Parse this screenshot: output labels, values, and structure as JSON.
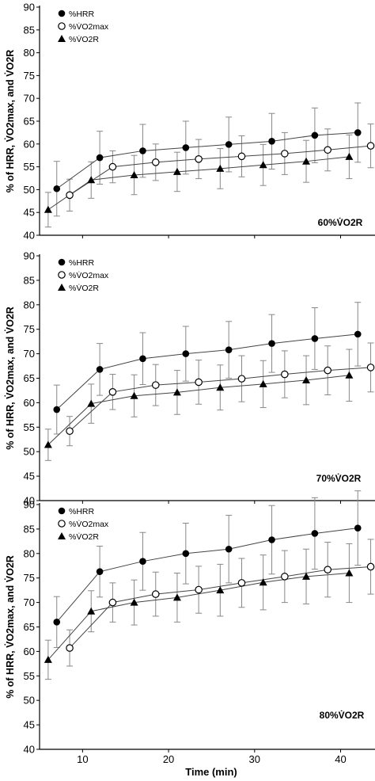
{
  "figure": {
    "x_axis_label": "Time (min)",
    "x_ticks": [
      "10",
      "20",
      "30",
      "40"
    ],
    "y_axis_label": "% of HRR, V̇O2max, and V̇O2R"
  },
  "legend": [
    {
      "label": "%HRR",
      "marker": "filled-circle"
    },
    {
      "label": "%V̇O2max",
      "marker": "open-circle"
    },
    {
      "label": "%V̇O2R",
      "marker": "filled-triangle"
    }
  ],
  "colors": {
    "ink": "#000000",
    "line": "#444444",
    "error_bar": "#888888",
    "background": "#ffffff"
  },
  "chart_data": [
    {
      "type": "line",
      "panel_label": "60%V̇O2R",
      "xlabel": "",
      "ylabel": "% of HRR, V̇O2max, and V̇O2R",
      "xlim": [
        5,
        44
      ],
      "ylim": [
        40,
        90
      ],
      "y_ticks": [
        40,
        45,
        50,
        55,
        60,
        65,
        70,
        75,
        80,
        85,
        90
      ],
      "grid": false,
      "legend_position": "top-left",
      "series": [
        {
          "name": "%HRR",
          "marker": "filled-circle",
          "x": [
            7,
            12,
            17,
            22,
            27,
            32,
            37,
            42
          ],
          "y": [
            50.2,
            57,
            58.5,
            59.2,
            59.9,
            60.6,
            61.9,
            62.5
          ],
          "err": [
            6,
            5.8,
            5.8,
            5.8,
            6,
            6.1,
            6,
            6.5
          ]
        },
        {
          "name": "%V̇O2max",
          "marker": "open-circle",
          "x": [
            8.5,
            13.5,
            18.5,
            23.5,
            28.5,
            33.5,
            38.5,
            43.5
          ],
          "y": [
            48.8,
            55,
            56,
            56.7,
            57.3,
            57.9,
            58.7,
            59.6
          ],
          "err": [
            3.5,
            3.5,
            4,
            4.3,
            4.5,
            4.6,
            4.6,
            4.8
          ]
        },
        {
          "name": "%V̇O2R",
          "marker": "filled-triangle",
          "x": [
            6,
            11,
            16,
            21,
            26,
            31,
            36,
            41
          ],
          "y": [
            45.6,
            52.1,
            53.2,
            53.9,
            54.6,
            55.4,
            56.2,
            57.2
          ],
          "err": [
            3.8,
            4,
            4.3,
            4.3,
            4.4,
            4.5,
            4.6,
            4.8
          ]
        }
      ]
    },
    {
      "type": "line",
      "panel_label": "70%V̇O2R",
      "xlabel": "",
      "ylabel": "% of HRR, V̇O2max, and V̇O2R",
      "xlim": [
        5,
        44
      ],
      "ylim": [
        40,
        90
      ],
      "y_ticks": [
        40,
        45,
        50,
        55,
        60,
        65,
        70,
        75,
        80,
        85,
        90
      ],
      "grid": false,
      "legend_position": "top-left",
      "series": [
        {
          "name": "%HRR",
          "marker": "filled-circle",
          "x": [
            7,
            12,
            17,
            22,
            27,
            32,
            37,
            42
          ],
          "y": [
            58.6,
            66.8,
            69,
            70,
            70.8,
            72.1,
            73.1,
            74
          ],
          "err": [
            5,
            5.3,
            5.3,
            5.6,
            5.8,
            5.9,
            6.3,
            6.5
          ]
        },
        {
          "name": "%V̇O2max",
          "marker": "open-circle",
          "x": [
            8.5,
            13.5,
            18.5,
            23.5,
            28.5,
            33.5,
            38.5,
            43.5
          ],
          "y": [
            54.2,
            62.2,
            63.6,
            64.2,
            64.9,
            65.8,
            66.6,
            67.2
          ],
          "err": [
            3,
            3.6,
            4.2,
            4.5,
            4.7,
            4.8,
            5,
            5
          ]
        },
        {
          "name": "%V̇O2R",
          "marker": "filled-triangle",
          "x": [
            6,
            11,
            16,
            21,
            26,
            31,
            36,
            41
          ],
          "y": [
            51.4,
            59.8,
            61.4,
            62.1,
            63.1,
            63.8,
            64.6,
            65.6
          ],
          "err": [
            3.2,
            4,
            4.3,
            4.5,
            4.6,
            4.8,
            5,
            5.3
          ]
        }
      ]
    },
    {
      "type": "line",
      "panel_label": "80%V̇O2R",
      "xlabel": "Time (min)",
      "ylabel": "% of HRR, V̇O2max, and V̇O2R",
      "xlim": [
        5,
        44
      ],
      "ylim": [
        40,
        90
      ],
      "y_ticks": [
        40,
        45,
        50,
        55,
        60,
        65,
        70,
        75,
        80,
        85,
        90
      ],
      "grid": false,
      "legend_position": "top-left",
      "series": [
        {
          "name": "%HRR",
          "marker": "filled-circle",
          "x": [
            7,
            12,
            17,
            22,
            27,
            32,
            37,
            42
          ],
          "y": [
            66,
            76.3,
            78.4,
            80,
            80.9,
            82.8,
            84.1,
            85.2
          ],
          "err": [
            5.2,
            5.2,
            5.9,
            6.2,
            6.9,
            7,
            7.3,
            7.6
          ]
        },
        {
          "name": "%V̇O2max",
          "marker": "open-circle",
          "x": [
            8.5,
            13.5,
            18.5,
            23.5,
            28.5,
            33.5,
            38.5,
            43.5
          ],
          "y": [
            60.7,
            70,
            71.7,
            72.6,
            74,
            75.3,
            76.7,
            77.3
          ],
          "err": [
            3.7,
            4,
            4.5,
            4.8,
            5,
            5.3,
            5.6,
            5.6
          ]
        },
        {
          "name": "%V̇O2R",
          "marker": "filled-triangle",
          "x": [
            6,
            11,
            16,
            21,
            26,
            31,
            36,
            41
          ],
          "y": [
            58.3,
            68.2,
            70,
            71,
            72.5,
            74.1,
            75.3,
            76
          ],
          "err": [
            4,
            4.2,
            4.6,
            5,
            5.3,
            5.6,
            5.6,
            6
          ]
        }
      ]
    }
  ]
}
